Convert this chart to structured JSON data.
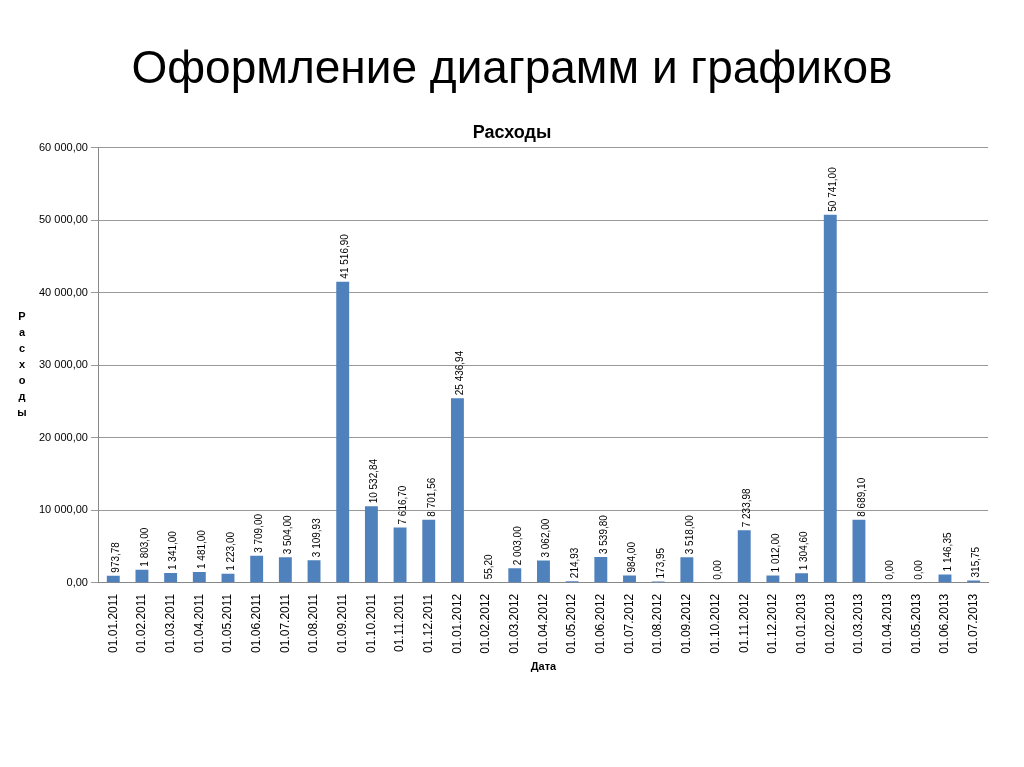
{
  "chart_data": {
    "type": "bar",
    "title": "Оформление диаграмм и графиков",
    "subtitle": "Расходы",
    "xlabel": "Дата",
    "ylabel": "Расходы",
    "categories": [
      "01.01.2011",
      "01.02.2011",
      "01.03.2011",
      "01.04.2011",
      "01.05.2011",
      "01.06.2011",
      "01.07.2011",
      "01.08.2011",
      "01.09.2011",
      "01.10.2011",
      "01.11.2011",
      "01.12.2011",
      "01.01.2012",
      "01.02.2012",
      "01.03.2012",
      "01.04.2012",
      "01.05.2012",
      "01.06.2012",
      "01.07.2012",
      "01.08.2012",
      "01.09.2012",
      "01.10.2012",
      "01.11.2012",
      "01.12.2012",
      "01.01.2013",
      "01.02.2013",
      "01.03.2013",
      "01.04.2013",
      "01.05.2013",
      "01.06.2013",
      "01.07.2013"
    ],
    "values": [
      973.78,
      1803,
      1341,
      1481,
      1223,
      3709,
      3504,
      3109.93,
      41516.9,
      10532.84,
      7616.7,
      8701.56,
      25436.94,
      55.2,
      2003,
      3062,
      214.93,
      3539.8,
      984,
      173.95,
      3518,
      0,
      7233.98,
      1012,
      1304.6,
      50741,
      8689.1,
      0,
      0,
      1146.35,
      315.75
    ],
    "value_labels": [
      "973,78",
      "1 803,00",
      "1 341,00",
      "1 481,00",
      "1 223,00",
      "3 709,00",
      "3 504,00",
      "3 109,93",
      "41 516,90",
      "10 532,84",
      "7 616,70",
      "8 701,56",
      "25 436,94",
      "55,20",
      "2 003,00",
      "3 062,00",
      "214,93",
      "3 539,80",
      "984,00",
      "173,95",
      "3 518,00",
      "0,00",
      "7 233,98",
      "1 012,00",
      "1 304,60",
      "50 741,00",
      "8 689,10",
      "0,00",
      "0,00",
      "1 146,35",
      "315,75"
    ],
    "color": "#4f81bd",
    "ylim": [
      0,
      60000
    ],
    "yticks": [
      {
        "value": 0,
        "label": "0,00"
      },
      {
        "value": 10000,
        "label": "10 000,00"
      },
      {
        "value": 20000,
        "label": "20 000,00"
      },
      {
        "value": 30000,
        "label": "30 000,00"
      },
      {
        "value": 40000,
        "label": "40 000,00"
      },
      {
        "value": 50000,
        "label": "50 000,00"
      },
      {
        "value": 60000,
        "label": "60 000,00"
      }
    ],
    "grid": "y",
    "legend": false
  }
}
